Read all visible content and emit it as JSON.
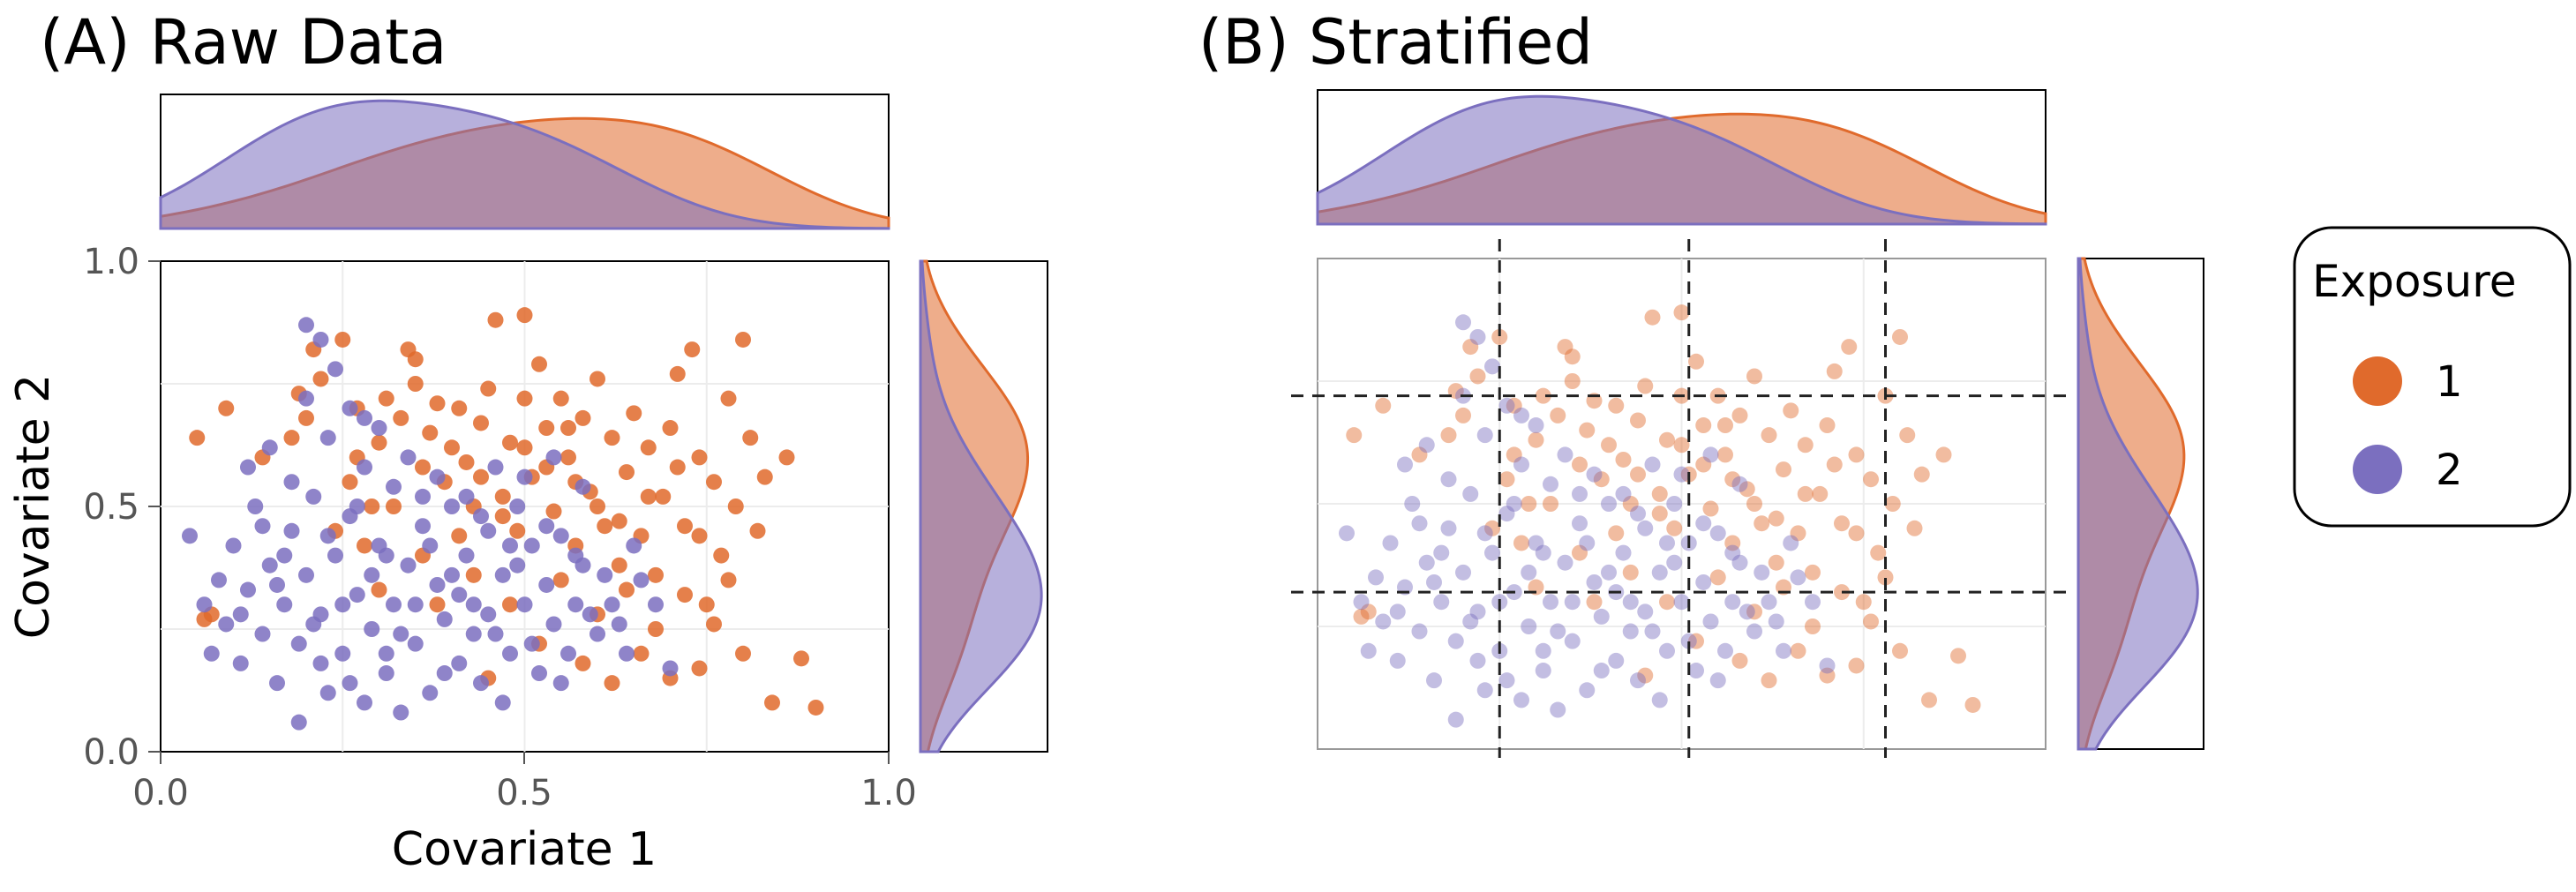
{
  "chart_data": [
    {
      "panel": "A",
      "type": "scatter",
      "title": "(A) Raw Data",
      "xlabel": "Covariate 1",
      "ylabel": "Covariate 2",
      "xlim": [
        0,
        1
      ],
      "ylim": [
        0,
        1
      ],
      "x_ticks": [
        "0.0",
        "0.5",
        "1.0"
      ],
      "y_ticks": [
        "0.0",
        "0.5",
        "1.0"
      ],
      "grid": true,
      "marginal_plots": "density (top: Covariate 1, right: Covariate 2)",
      "legend_title": "Exposure",
      "series": [
        {
          "name": "1",
          "color": "#E06A2C",
          "points": [
            [
              0.05,
              0.64
            ],
            [
              0.09,
              0.7
            ],
            [
              0.06,
              0.27
            ],
            [
              0.07,
              0.28
            ],
            [
              0.14,
              0.6
            ],
            [
              0.18,
              0.64
            ],
            [
              0.19,
              0.73
            ],
            [
              0.2,
              0.68
            ],
            [
              0.21,
              0.82
            ],
            [
              0.22,
              0.76
            ],
            [
              0.25,
              0.84
            ],
            [
              0.27,
              0.6
            ],
            [
              0.27,
              0.7
            ],
            [
              0.29,
              0.5
            ],
            [
              0.3,
              0.63
            ],
            [
              0.31,
              0.72
            ],
            [
              0.33,
              0.68
            ],
            [
              0.34,
              0.82
            ],
            [
              0.35,
              0.75
            ],
            [
              0.36,
              0.58
            ],
            [
              0.37,
              0.65
            ],
            [
              0.38,
              0.71
            ],
            [
              0.39,
              0.55
            ],
            [
              0.4,
              0.62
            ],
            [
              0.41,
              0.7
            ],
            [
              0.42,
              0.59
            ],
            [
              0.43,
              0.5
            ],
            [
              0.44,
              0.67
            ],
            [
              0.45,
              0.74
            ],
            [
              0.46,
              0.88
            ],
            [
              0.47,
              0.52
            ],
            [
              0.48,
              0.63
            ],
            [
              0.49,
              0.45
            ],
            [
              0.5,
              0.72
            ],
            [
              0.5,
              0.89
            ],
            [
              0.51,
              0.56
            ],
            [
              0.52,
              0.79
            ],
            [
              0.53,
              0.66
            ],
            [
              0.54,
              0.49
            ],
            [
              0.55,
              0.72
            ],
            [
              0.56,
              0.6
            ],
            [
              0.57,
              0.42
            ],
            [
              0.58,
              0.68
            ],
            [
              0.59,
              0.53
            ],
            [
              0.6,
              0.76
            ],
            [
              0.61,
              0.46
            ],
            [
              0.62,
              0.64
            ],
            [
              0.63,
              0.38
            ],
            [
              0.64,
              0.57
            ],
            [
              0.65,
              0.69
            ],
            [
              0.66,
              0.44
            ],
            [
              0.67,
              0.62
            ],
            [
              0.68,
              0.36
            ],
            [
              0.69,
              0.52
            ],
            [
              0.7,
              0.66
            ],
            [
              0.71,
              0.77
            ],
            [
              0.72,
              0.46
            ],
            [
              0.73,
              0.82
            ],
            [
              0.74,
              0.6
            ],
            [
              0.75,
              0.3
            ],
            [
              0.76,
              0.55
            ],
            [
              0.77,
              0.4
            ],
            [
              0.78,
              0.72
            ],
            [
              0.79,
              0.5
            ],
            [
              0.8,
              0.84
            ],
            [
              0.81,
              0.64
            ],
            [
              0.82,
              0.45
            ],
            [
              0.83,
              0.56
            ],
            [
              0.84,
              0.1
            ],
            [
              0.86,
              0.6
            ],
            [
              0.88,
              0.19
            ],
            [
              0.9,
              0.09
            ],
            [
              0.45,
              0.15
            ],
            [
              0.48,
              0.3
            ],
            [
              0.52,
              0.22
            ],
            [
              0.55,
              0.35
            ],
            [
              0.58,
              0.18
            ],
            [
              0.6,
              0.28
            ],
            [
              0.62,
              0.14
            ],
            [
              0.64,
              0.33
            ],
            [
              0.66,
              0.2
            ],
            [
              0.68,
              0.25
            ],
            [
              0.7,
              0.15
            ],
            [
              0.72,
              0.32
            ],
            [
              0.74,
              0.17
            ],
            [
              0.76,
              0.26
            ],
            [
              0.8,
              0.2
            ],
            [
              0.5,
              0.62
            ],
            [
              0.53,
              0.58
            ],
            [
              0.57,
              0.55
            ],
            [
              0.6,
              0.5
            ],
            [
              0.44,
              0.56
            ],
            [
              0.47,
              0.48
            ],
            [
              0.41,
              0.44
            ],
            [
              0.36,
              0.4
            ],
            [
              0.32,
              0.5
            ],
            [
              0.28,
              0.42
            ],
            [
              0.24,
              0.45
            ],
            [
              0.26,
              0.55
            ],
            [
              0.3,
              0.33
            ],
            [
              0.38,
              0.3
            ],
            [
              0.43,
              0.36
            ],
            [
              0.63,
              0.47
            ],
            [
              0.67,
              0.52
            ],
            [
              0.71,
              0.58
            ],
            [
              0.74,
              0.44
            ],
            [
              0.78,
              0.35
            ],
            [
              0.56,
              0.66
            ],
            [
              0.35,
              0.8
            ]
          ]
        },
        {
          "name": "2",
          "color": "#7B6FBF",
          "points": [
            [
              0.04,
              0.44
            ],
            [
              0.06,
              0.3
            ],
            [
              0.07,
              0.2
            ],
            [
              0.08,
              0.35
            ],
            [
              0.09,
              0.26
            ],
            [
              0.1,
              0.42
            ],
            [
              0.11,
              0.18
            ],
            [
              0.12,
              0.33
            ],
            [
              0.13,
              0.5
            ],
            [
              0.14,
              0.24
            ],
            [
              0.15,
              0.38
            ],
            [
              0.16,
              0.14
            ],
            [
              0.17,
              0.3
            ],
            [
              0.18,
              0.45
            ],
            [
              0.19,
              0.06
            ],
            [
              0.19,
              0.22
            ],
            [
              0.2,
              0.36
            ],
            [
              0.2,
              0.87
            ],
            [
              0.21,
              0.52
            ],
            [
              0.22,
              0.84
            ],
            [
              0.22,
              0.28
            ],
            [
              0.23,
              0.12
            ],
            [
              0.24,
              0.4
            ],
            [
              0.25,
              0.2
            ],
            [
              0.26,
              0.48
            ],
            [
              0.27,
              0.32
            ],
            [
              0.28,
              0.1
            ],
            [
              0.28,
              0.58
            ],
            [
              0.29,
              0.25
            ],
            [
              0.3,
              0.42
            ],
            [
              0.31,
              0.16
            ],
            [
              0.32,
              0.54
            ],
            [
              0.32,
              0.3
            ],
            [
              0.33,
              0.08
            ],
            [
              0.34,
              0.38
            ],
            [
              0.35,
              0.22
            ],
            [
              0.36,
              0.46
            ],
            [
              0.37,
              0.12
            ],
            [
              0.38,
              0.34
            ],
            [
              0.39,
              0.27
            ],
            [
              0.4,
              0.5
            ],
            [
              0.41,
              0.18
            ],
            [
              0.42,
              0.4
            ],
            [
              0.43,
              0.3
            ],
            [
              0.44,
              0.14
            ],
            [
              0.45,
              0.45
            ],
            [
              0.46,
              0.24
            ],
            [
              0.47,
              0.36
            ],
            [
              0.48,
              0.2
            ],
            [
              0.49,
              0.5
            ],
            [
              0.5,
              0.3
            ],
            [
              0.51,
              0.42
            ],
            [
              0.52,
              0.16
            ],
            [
              0.53,
              0.34
            ],
            [
              0.54,
              0.26
            ],
            [
              0.55,
              0.44
            ],
            [
              0.56,
              0.2
            ],
            [
              0.57,
              0.3
            ],
            [
              0.58,
              0.38
            ],
            [
              0.6,
              0.24
            ],
            [
              0.62,
              0.3
            ],
            [
              0.64,
              0.2
            ],
            [
              0.66,
              0.35
            ],
            [
              0.12,
              0.58
            ],
            [
              0.15,
              0.62
            ],
            [
              0.18,
              0.55
            ],
            [
              0.23,
              0.64
            ],
            [
              0.26,
              0.7
            ],
            [
              0.3,
              0.66
            ],
            [
              0.34,
              0.6
            ],
            [
              0.38,
              0.56
            ],
            [
              0.42,
              0.52
            ],
            [
              0.46,
              0.58
            ],
            [
              0.5,
              0.56
            ],
            [
              0.54,
              0.6
            ],
            [
              0.58,
              0.54
            ],
            [
              0.2,
              0.72
            ],
            [
              0.24,
              0.78
            ],
            [
              0.28,
              0.68
            ],
            [
              0.16,
              0.34
            ],
            [
              0.21,
              0.26
            ],
            [
              0.25,
              0.3
            ],
            [
              0.29,
              0.36
            ],
            [
              0.33,
              0.24
            ],
            [
              0.37,
              0.42
            ],
            [
              0.41,
              0.32
            ],
            [
              0.45,
              0.28
            ],
            [
              0.49,
              0.38
            ],
            [
              0.53,
              0.46
            ],
            [
              0.57,
              0.4
            ],
            [
              0.11,
              0.28
            ],
            [
              0.14,
              0.46
            ],
            [
              0.17,
              0.4
            ],
            [
              0.22,
              0.18
            ],
            [
              0.26,
              0.14
            ],
            [
              0.31,
              0.2
            ],
            [
              0.35,
              0.3
            ],
            [
              0.39,
              0.16
            ],
            [
              0.43,
              0.24
            ],
            [
              0.47,
              0.1
            ],
            [
              0.51,
              0.22
            ],
            [
              0.55,
              0.14
            ],
            [
              0.59,
              0.28
            ],
            [
              0.61,
              0.36
            ],
            [
              0.63,
              0.26
            ],
            [
              0.65,
              0.42
            ],
            [
              0.68,
              0.3
            ],
            [
              0.7,
              0.17
            ],
            [
              0.23,
              0.44
            ],
            [
              0.27,
              0.5
            ],
            [
              0.31,
              0.4
            ],
            [
              0.36,
              0.52
            ],
            [
              0.4,
              0.36
            ],
            [
              0.44,
              0.48
            ],
            [
              0.48,
              0.42
            ]
          ]
        }
      ]
    },
    {
      "panel": "B",
      "type": "scatter",
      "title": "(B) Stratified",
      "xlim": [
        0,
        1
      ],
      "ylim": [
        0,
        1
      ],
      "grid": true,
      "strata_x": [
        0.25,
        0.51,
        0.78
      ],
      "strata_y": [
        0.32,
        0.72
      ],
      "marginal_plots": "density (top: Covariate 1, right: Covariate 2)",
      "point_opacity": 0.45,
      "note": "same points as panel A, shown faded with dashed stratification lines"
    }
  ],
  "legend": {
    "title": "Exposure",
    "items": [
      {
        "label": "1",
        "color": "#E06A2C"
      },
      {
        "label": "2",
        "color": "#7B6FBF"
      }
    ]
  }
}
